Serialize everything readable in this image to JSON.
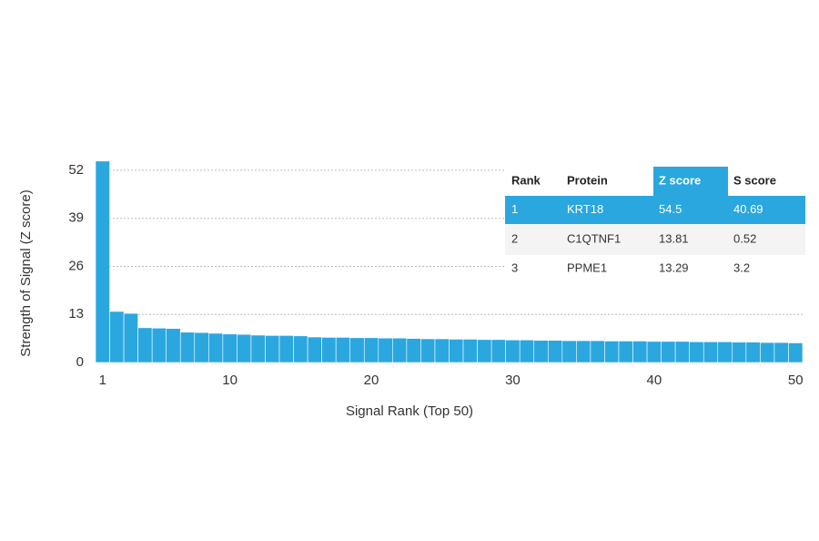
{
  "chart_data": {
    "type": "bar",
    "x_label": "Signal Rank (Top 50)",
    "y_label": "Strength of Signal (Z score)",
    "categories": [
      "1",
      null,
      null,
      null,
      null,
      null,
      null,
      null,
      null,
      "10",
      null,
      null,
      null,
      null,
      null,
      null,
      null,
      null,
      null,
      "20",
      null,
      null,
      null,
      null,
      null,
      null,
      null,
      null,
      null,
      "30",
      null,
      null,
      null,
      null,
      null,
      null,
      null,
      null,
      null,
      "40",
      null,
      null,
      null,
      null,
      null,
      null,
      null,
      null,
      null,
      "50"
    ],
    "values": [
      54.5,
      13.81,
      13.29,
      9.4,
      9.3,
      9.2,
      8.2,
      8.1,
      7.9,
      7.7,
      7.6,
      7.4,
      7.3,
      7.3,
      7.2,
      6.9,
      6.8,
      6.8,
      6.7,
      6.7,
      6.6,
      6.6,
      6.5,
      6.4,
      6.4,
      6.3,
      6.3,
      6.2,
      6.2,
      6.1,
      6.1,
      6.0,
      6.0,
      5.9,
      5.9,
      5.9,
      5.8,
      5.8,
      5.8,
      5.7,
      5.7,
      5.7,
      5.6,
      5.6,
      5.6,
      5.5,
      5.5,
      5.4,
      5.4,
      5.3
    ],
    "color": "#2aa7df",
    "ylim": [
      0,
      52
    ],
    "yticks": [
      0,
      13,
      26,
      39,
      52
    ],
    "grid": true
  },
  "table": {
    "columns": [
      "Rank",
      "Protein",
      "Z score",
      "S score"
    ],
    "rows": [
      [
        1,
        "KRT18",
        54.5,
        40.69
      ],
      [
        2,
        "C1QTNF1",
        13.81,
        0.52
      ],
      [
        3,
        "PPME1",
        13.29,
        3.2
      ]
    ]
  }
}
